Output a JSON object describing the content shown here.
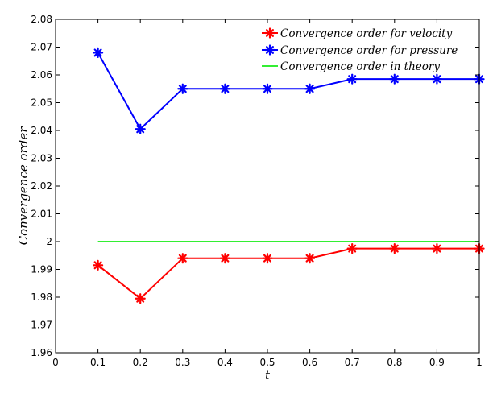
{
  "chart_data": {
    "type": "line",
    "title": "",
    "xlabel": "t",
    "ylabel": "Convergence order",
    "xlim": [
      0,
      1
    ],
    "ylim": [
      1.96,
      2.08
    ],
    "xticks": [
      0,
      0.1,
      0.2,
      0.3,
      0.4,
      0.5,
      0.6,
      0.7,
      0.8,
      0.9,
      1
    ],
    "xtick_labels": [
      "0",
      "0.1",
      "0.2",
      "0.3",
      "0.4",
      "0.5",
      "0.6",
      "0.7",
      "0.8",
      "0.9",
      "1"
    ],
    "yticks": [
      1.96,
      1.97,
      1.98,
      1.99,
      2,
      2.01,
      2.02,
      2.03,
      2.04,
      2.05,
      2.06,
      2.07,
      2.08
    ],
    "ytick_labels": [
      "1.96",
      "1.97",
      "1.98",
      "1.99",
      "2",
      "2.01",
      "2.02",
      "2.03",
      "2.04",
      "2.05",
      "2.06",
      "2.07",
      "2.08"
    ],
    "grid": false,
    "legend_position": "top-right",
    "series": [
      {
        "name": "Convergence order for velocity",
        "color": "#ff0000",
        "marker": "asterisk",
        "x": [
          0.1,
          0.2,
          0.3,
          0.4,
          0.5,
          0.6,
          0.7,
          0.8,
          0.9,
          1.0
        ],
        "y": [
          1.9915,
          1.9795,
          1.994,
          1.994,
          1.994,
          1.994,
          1.9975,
          1.9975,
          1.9975,
          1.9975
        ]
      },
      {
        "name": "Convergence order for pressure",
        "color": "#0000ff",
        "marker": "asterisk",
        "x": [
          0.1,
          0.2,
          0.3,
          0.4,
          0.5,
          0.6,
          0.7,
          0.8,
          0.9,
          1.0
        ],
        "y": [
          2.068,
          2.0405,
          2.055,
          2.055,
          2.055,
          2.055,
          2.0585,
          2.0585,
          2.0585,
          2.0585
        ]
      },
      {
        "name": "Convergence order in theory",
        "color": "#33ee33",
        "marker": "none",
        "x": [
          0.1,
          1.0
        ],
        "y": [
          2,
          2
        ]
      }
    ]
  }
}
